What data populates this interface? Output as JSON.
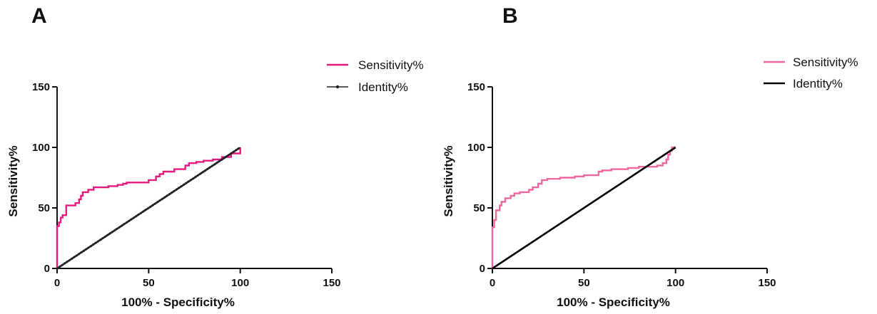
{
  "chart_data": [
    {
      "type": "line",
      "panel_label": "A",
      "xlabel": "100% - Specificity%",
      "ylabel": "Sensitivity%",
      "xlim": [
        0,
        150
      ],
      "ylim": [
        0,
        150
      ],
      "xticks": [
        0,
        50,
        100,
        150
      ],
      "yticks": [
        0,
        50,
        100,
        150
      ],
      "legend_position": "top-right",
      "series": [
        {
          "name": "Sensitivity%",
          "color": "#e6197f",
          "style": "step",
          "x": [
            0,
            0,
            1,
            1,
            2,
            2,
            3,
            3,
            5,
            5,
            10,
            10,
            12,
            12,
            13,
            13,
            14,
            14,
            17,
            17,
            20,
            20,
            28,
            28,
            33,
            33,
            36,
            36,
            38,
            38,
            50,
            50,
            54,
            54,
            56,
            56,
            58,
            58,
            64,
            64,
            70,
            70,
            72,
            72,
            76,
            76,
            80,
            80,
            85,
            85,
            90,
            90,
            95,
            95,
            100,
            100
          ],
          "y": [
            0,
            35,
            35,
            38,
            38,
            42,
            42,
            44,
            44,
            52,
            52,
            54,
            54,
            57,
            57,
            60,
            60,
            63,
            63,
            65,
            65,
            67,
            67,
            68,
            68,
            69,
            69,
            70,
            70,
            71,
            71,
            73,
            73,
            76,
            76,
            78,
            78,
            80,
            80,
            82,
            82,
            85,
            85,
            87,
            87,
            88,
            88,
            89,
            89,
            90,
            90,
            92,
            92,
            95,
            95,
            100
          ]
        },
        {
          "name": "Identity%",
          "color": "#222222",
          "style": "dotted-marker",
          "x": [
            0,
            100
          ],
          "y": [
            0,
            100
          ]
        }
      ]
    },
    {
      "type": "line",
      "panel_label": "B",
      "xlabel": "100% - Specificity%",
      "ylabel": "Sensitivity%",
      "xlim": [
        0,
        150
      ],
      "ylim": [
        0,
        150
      ],
      "xticks": [
        0,
        50,
        100,
        150
      ],
      "yticks": [
        0,
        50,
        100,
        150
      ],
      "legend_position": "top-right",
      "series": [
        {
          "name": "Sensitivity%",
          "color": "#f0679e",
          "style": "step",
          "x": [
            0,
            0,
            1,
            1,
            2,
            2,
            4,
            4,
            5,
            5,
            7,
            7,
            10,
            10,
            12,
            12,
            15,
            15,
            20,
            20,
            22,
            22,
            25,
            25,
            27,
            27,
            30,
            30,
            37,
            37,
            45,
            45,
            50,
            50,
            58,
            58,
            60,
            60,
            65,
            65,
            74,
            74,
            80,
            80,
            90,
            90,
            93,
            93,
            95,
            95,
            96,
            96,
            97,
            97,
            98,
            98,
            100
          ],
          "y": [
            0,
            34,
            34,
            40,
            40,
            48,
            48,
            52,
            52,
            55,
            55,
            58,
            58,
            60,
            60,
            62,
            62,
            63,
            63,
            65,
            65,
            67,
            67,
            70,
            70,
            73,
            73,
            74,
            74,
            75,
            75,
            76,
            76,
            77,
            77,
            80,
            80,
            81,
            81,
            82,
            82,
            83,
            83,
            84,
            84,
            85,
            85,
            87,
            87,
            90,
            90,
            94,
            94,
            97,
            97,
            100,
            100
          ]
        },
        {
          "name": "Identity%",
          "color": "#000000",
          "style": "solid",
          "x": [
            0,
            100
          ],
          "y": [
            0,
            100
          ]
        }
      ]
    }
  ]
}
